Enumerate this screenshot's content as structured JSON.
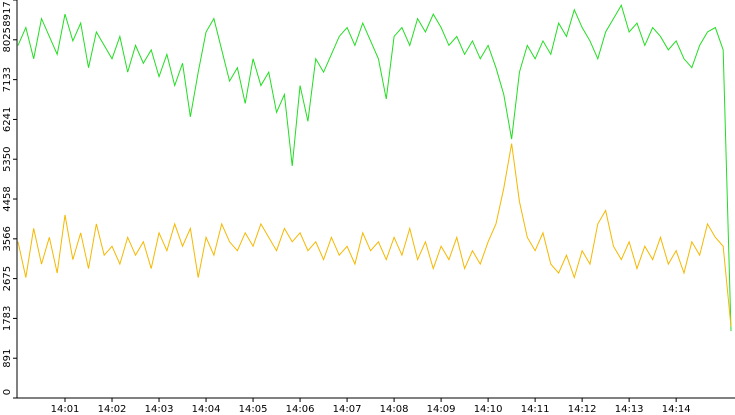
{
  "chart_data": {
    "type": "line",
    "categories": [
      null,
      null,
      null,
      null,
      null,
      null,
      "14:01",
      null,
      null,
      null,
      null,
      null,
      "14:02",
      null,
      null,
      null,
      null,
      null,
      "14:03",
      null,
      null,
      null,
      null,
      null,
      "14:04",
      null,
      null,
      null,
      null,
      null,
      "14:05",
      null,
      null,
      null,
      null,
      null,
      "14:06",
      null,
      null,
      null,
      null,
      null,
      "14:07",
      null,
      null,
      null,
      null,
      null,
      "14:08",
      null,
      null,
      null,
      null,
      null,
      "14:09",
      null,
      null,
      null,
      null,
      null,
      "14:10",
      null,
      null,
      null,
      null,
      null,
      "14:11",
      null,
      null,
      null,
      null,
      null,
      "14:12",
      null,
      null,
      null,
      null,
      null,
      "14:13",
      null,
      null,
      null,
      null,
      null,
      "14:14",
      null,
      null,
      null,
      null,
      null,
      null,
      null
    ],
    "series": [
      {
        "color": "#22dd22",
        "values": [
          7900,
          8300,
          7600,
          8500,
          8100,
          7700,
          8600,
          8000,
          8400,
          7400,
          8200,
          7900,
          7600,
          8100,
          7300,
          7900,
          7500,
          7800,
          7200,
          7700,
          7000,
          7500,
          6300,
          7300,
          8200,
          8500,
          7800,
          7100,
          7400,
          6600,
          7600,
          7000,
          7300,
          6400,
          6800,
          5200,
          7000,
          6200,
          7600,
          7300,
          7700,
          8100,
          8300,
          7900,
          8400,
          8000,
          7600,
          6700,
          8100,
          8300,
          7900,
          8500,
          8200,
          8600,
          8300,
          7900,
          8100,
          7700,
          8000,
          7600,
          7900,
          7400,
          6800,
          5800,
          7300,
          7900,
          7600,
          8000,
          7700,
          8400,
          8100,
          8700,
          8300,
          8000,
          7600,
          8200,
          8500,
          8800,
          8200,
          8400,
          7900,
          8300,
          8100,
          7800,
          8000,
          7600,
          7400,
          7900,
          8200,
          8300,
          7800,
          1500
        ]
      },
      {
        "color": "#f5b800",
        "values": [
          3500,
          2700,
          3800,
          3000,
          3600,
          2800,
          4100,
          3100,
          3700,
          2900,
          3900,
          3200,
          3400,
          3000,
          3600,
          3200,
          3500,
          2900,
          3700,
          3300,
          3900,
          3400,
          3800,
          2700,
          3600,
          3200,
          3900,
          3500,
          3300,
          3700,
          3400,
          3900,
          3600,
          3300,
          3800,
          3500,
          3700,
          3300,
          3500,
          3100,
          3600,
          3200,
          3400,
          3000,
          3700,
          3300,
          3500,
          3100,
          3600,
          3200,
          3800,
          3100,
          3500,
          2900,
          3400,
          3100,
          3600,
          2900,
          3300,
          3000,
          3500,
          3900,
          4700,
          5700,
          4400,
          3600,
          3300,
          3700,
          3000,
          2800,
          3200,
          2700,
          3300,
          3000,
          3900,
          4200,
          3400,
          3100,
          3500,
          2900,
          3400,
          3100,
          3600,
          3000,
          3300,
          2800,
          3500,
          3200,
          3900,
          3600,
          3400,
          1600
        ]
      }
    ],
    "ylim": [
      0,
      8917
    ],
    "yticks": [
      0,
      891,
      1783,
      2675,
      3566,
      4458,
      5350,
      6241,
      7133,
      8025,
      8917
    ]
  }
}
